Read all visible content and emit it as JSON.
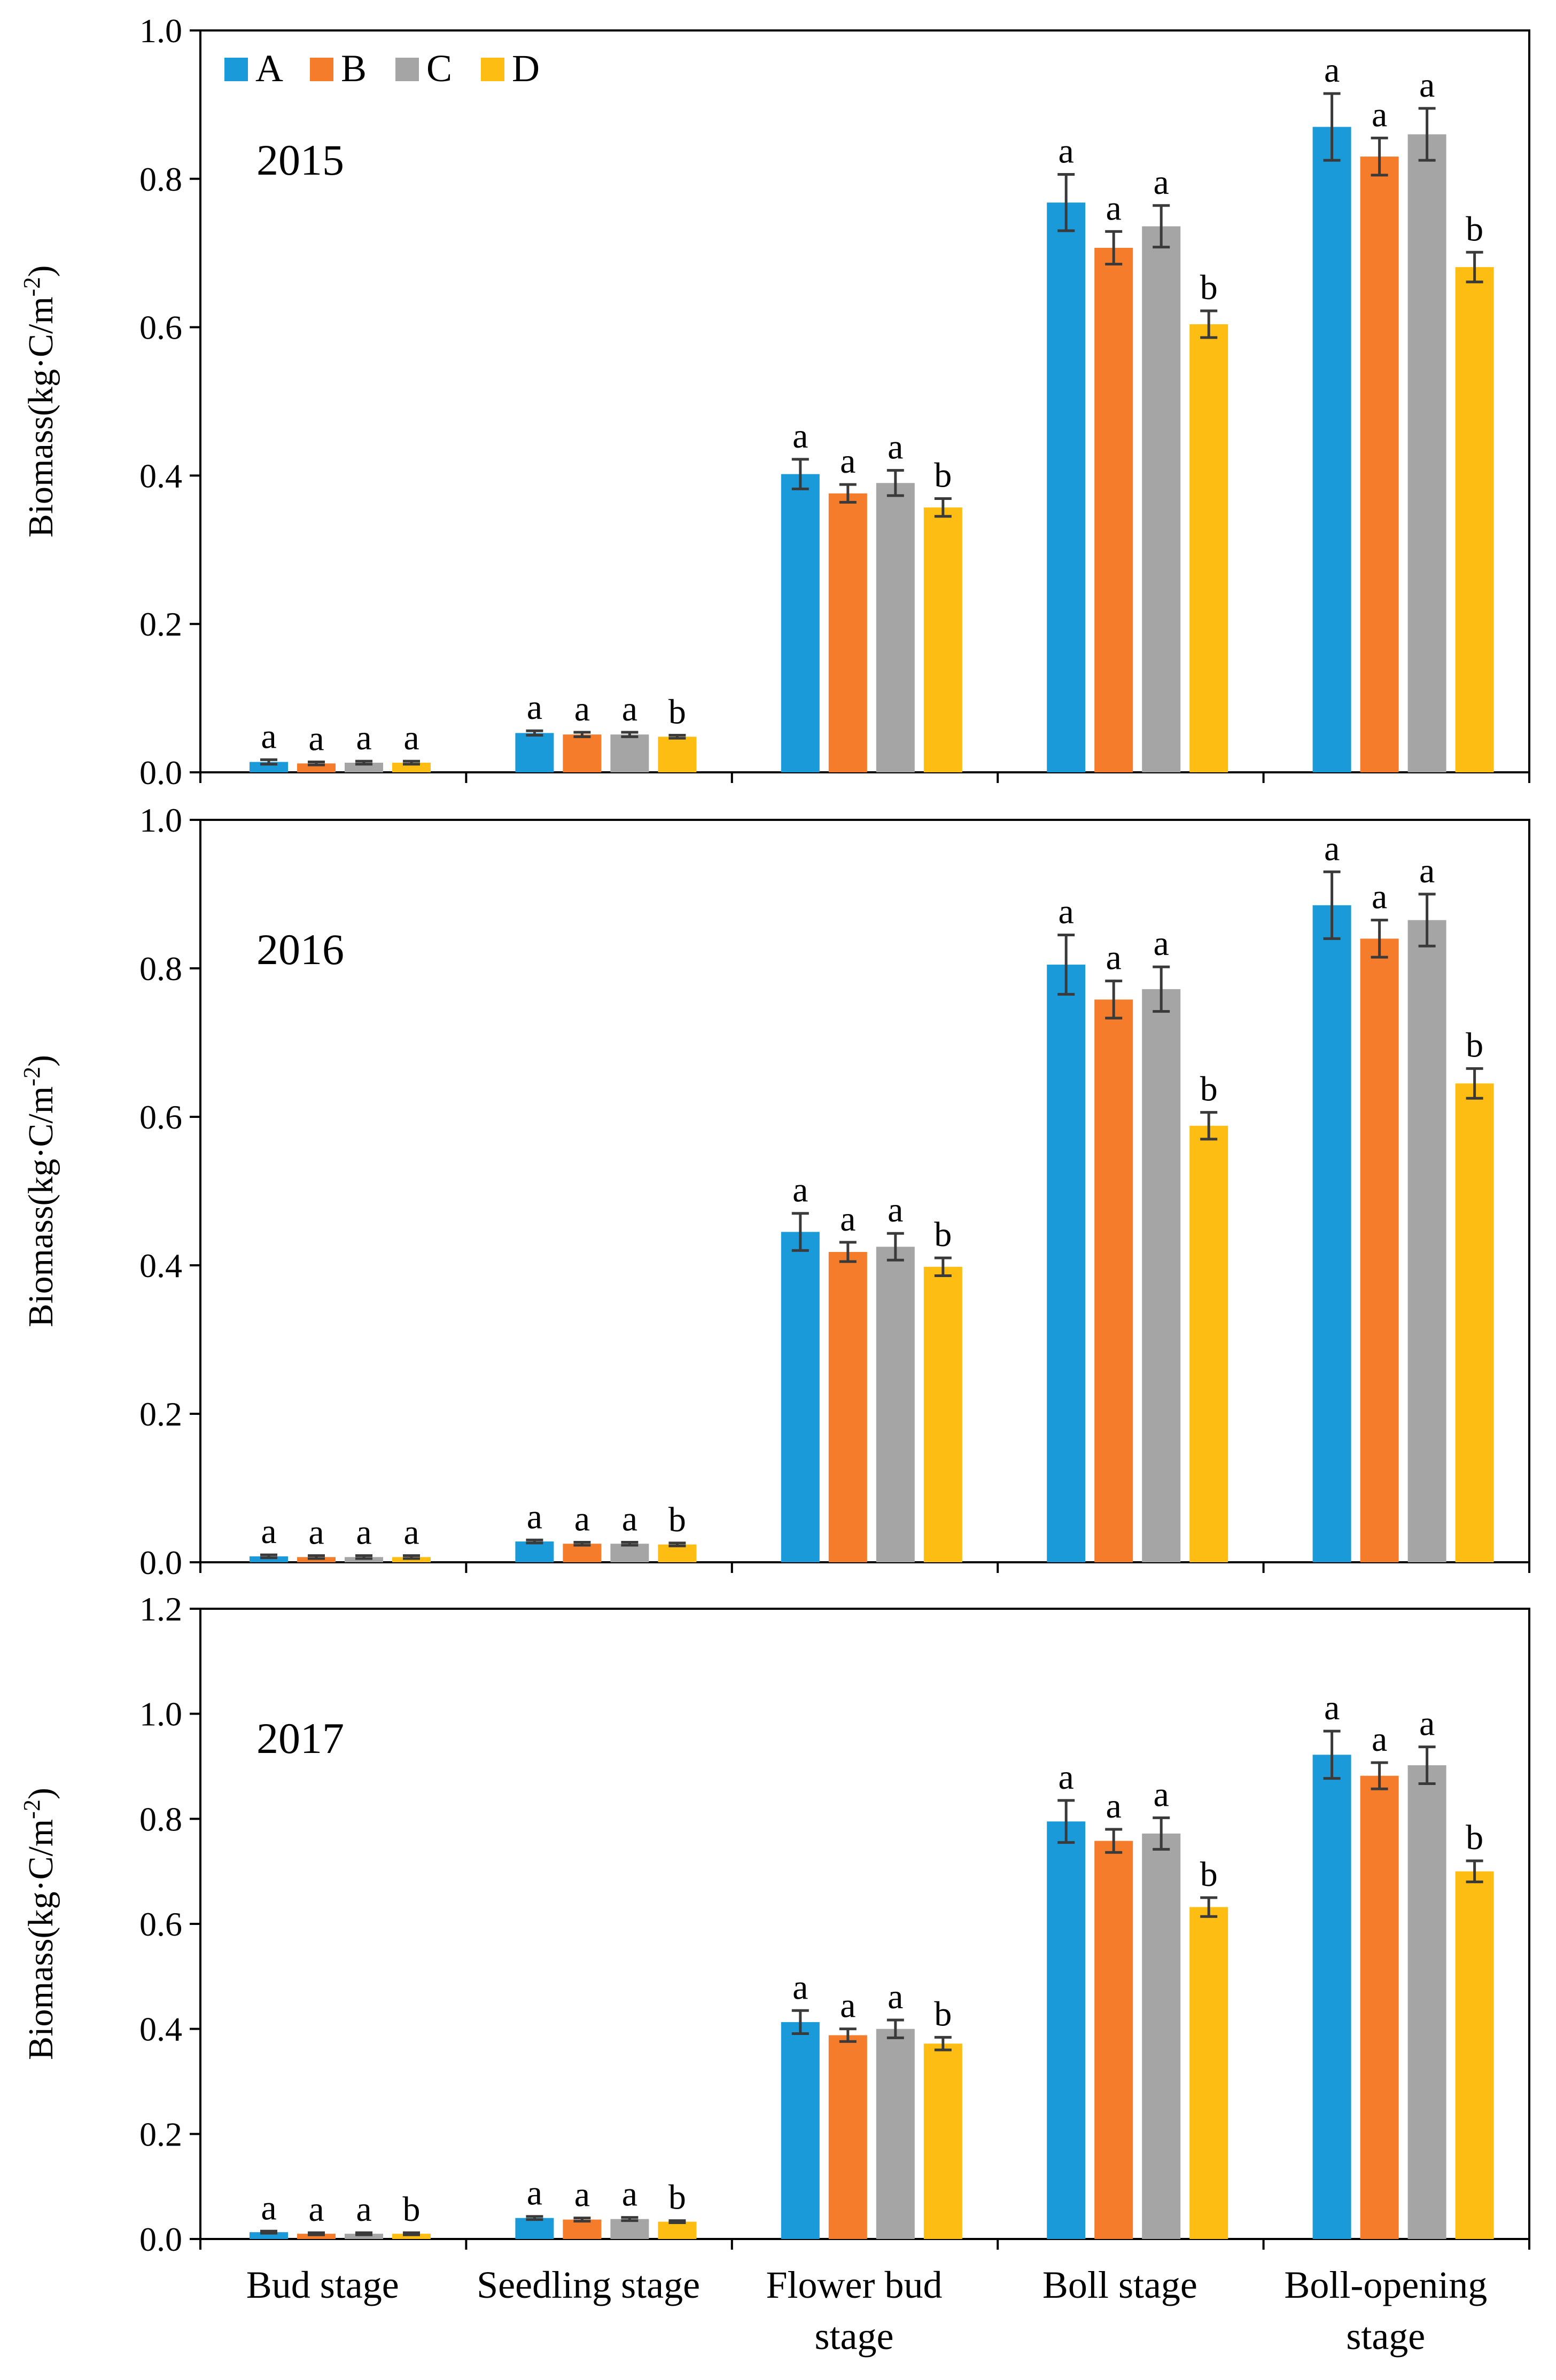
{
  "legend": {
    "items": [
      {
        "key": "A",
        "color": "#1a9ad8"
      },
      {
        "key": "B",
        "color": "#f47c2a"
      },
      {
        "key": "C",
        "color": "#a5a5a5"
      },
      {
        "key": "D",
        "color": "#fdbd13"
      }
    ]
  },
  "x_axis": {
    "labels": [
      [
        "Bud stage"
      ],
      [
        "Seedling stage"
      ],
      [
        "Flower bud",
        "stage"
      ],
      [
        "Boll stage"
      ],
      [
        "Boll-opening",
        "stage"
      ]
    ]
  },
  "chart_data": [
    {
      "type": "bar",
      "title": "2015",
      "xlabel": "",
      "ylabel": "Biomass(kg·C/m-2)",
      "ylim": [
        0,
        1.0
      ],
      "yticks": [
        "0.0",
        "0.2",
        "0.4",
        "0.6",
        "0.8",
        "1.0"
      ],
      "categories": [
        "Bud stage",
        "Seedling stage",
        "Flower bud stage",
        "Boll stage",
        "Boll-opening stage"
      ],
      "series": [
        {
          "name": "A",
          "color": "#1a9ad8",
          "values": [
            0.014,
            0.053,
            0.402,
            0.768,
            0.87
          ],
          "errors": [
            0.003,
            0.003,
            0.02,
            0.038,
            0.045
          ],
          "labels": [
            "a",
            "a",
            "a",
            "a",
            "a"
          ]
        },
        {
          "name": "B",
          "color": "#f47c2a",
          "values": [
            0.012,
            0.051,
            0.376,
            0.707,
            0.83
          ],
          "errors": [
            0.002,
            0.003,
            0.012,
            0.022,
            0.025
          ],
          "labels": [
            "a",
            "a",
            "a",
            "a",
            "a"
          ]
        },
        {
          "name": "C",
          "color": "#a5a5a5",
          "values": [
            0.013,
            0.051,
            0.39,
            0.736,
            0.86
          ],
          "errors": [
            0.002,
            0.003,
            0.017,
            0.028,
            0.035
          ],
          "labels": [
            "a",
            "a",
            "a",
            "a",
            "a"
          ]
        },
        {
          "name": "D",
          "color": "#fdbd13",
          "values": [
            0.013,
            0.048,
            0.357,
            0.604,
            0.681
          ],
          "errors": [
            0.002,
            0.002,
            0.012,
            0.018,
            0.02
          ],
          "labels": [
            "a",
            "b",
            "b",
            "b",
            "b"
          ]
        }
      ]
    },
    {
      "type": "bar",
      "title": "2016",
      "xlabel": "",
      "ylabel": "Biomass(kg·C/m-2)",
      "ylim": [
        0,
        1.0
      ],
      "yticks": [
        "0.0",
        "0.2",
        "0.4",
        "0.6",
        "0.8",
        "1.0"
      ],
      "categories": [
        "Bud stage",
        "Seedling stage",
        "Flower bud stage",
        "Boll stage",
        "Boll-opening stage"
      ],
      "series": [
        {
          "name": "A",
          "color": "#1a9ad8",
          "values": [
            0.008,
            0.028,
            0.445,
            0.805,
            0.885
          ],
          "errors": [
            0.002,
            0.002,
            0.025,
            0.04,
            0.045
          ],
          "labels": [
            "a",
            "a",
            "a",
            "a",
            "a"
          ]
        },
        {
          "name": "B",
          "color": "#f47c2a",
          "values": [
            0.007,
            0.025,
            0.418,
            0.758,
            0.84
          ],
          "errors": [
            0.002,
            0.002,
            0.013,
            0.025,
            0.025
          ],
          "labels": [
            "a",
            "a",
            "a",
            "a",
            "a"
          ]
        },
        {
          "name": "C",
          "color": "#a5a5a5",
          "values": [
            0.007,
            0.025,
            0.425,
            0.772,
            0.865
          ],
          "errors": [
            0.002,
            0.002,
            0.018,
            0.03,
            0.035
          ],
          "labels": [
            "a",
            "a",
            "a",
            "a",
            "a"
          ]
        },
        {
          "name": "D",
          "color": "#fdbd13",
          "values": [
            0.007,
            0.024,
            0.398,
            0.588,
            0.645
          ],
          "errors": [
            0.002,
            0.002,
            0.012,
            0.018,
            0.02
          ],
          "labels": [
            "a",
            "b",
            "b",
            "b",
            "b"
          ]
        }
      ]
    },
    {
      "type": "bar",
      "title": "2017",
      "xlabel": "",
      "ylabel": "Biomass(kg·C/m-2)",
      "ylim": [
        0,
        1.2
      ],
      "yticks": [
        "0.0",
        "0.2",
        "0.4",
        "0.6",
        "0.8",
        "1.0",
        "1.2"
      ],
      "categories": [
        "Bud stage",
        "Seedling stage",
        "Flower bud stage",
        "Boll stage",
        "Boll-opening stage"
      ],
      "series": [
        {
          "name": "A",
          "color": "#1a9ad8",
          "values": [
            0.013,
            0.04,
            0.413,
            0.795,
            0.922
          ],
          "errors": [
            0.002,
            0.003,
            0.022,
            0.04,
            0.045
          ],
          "labels": [
            "a",
            "a",
            "a",
            "a",
            "a"
          ]
        },
        {
          "name": "B",
          "color": "#f47c2a",
          "values": [
            0.01,
            0.037,
            0.388,
            0.758,
            0.882
          ],
          "errors": [
            0.002,
            0.003,
            0.012,
            0.022,
            0.025
          ],
          "labels": [
            "a",
            "a",
            "a",
            "a",
            "a"
          ]
        },
        {
          "name": "C",
          "color": "#a5a5a5",
          "values": [
            0.01,
            0.038,
            0.4,
            0.772,
            0.902
          ],
          "errors": [
            0.002,
            0.003,
            0.017,
            0.03,
            0.035
          ],
          "labels": [
            "a",
            "a",
            "a",
            "a",
            "a"
          ]
        },
        {
          "name": "D",
          "color": "#fdbd13",
          "values": [
            0.01,
            0.033,
            0.372,
            0.632,
            0.7
          ],
          "errors": [
            0.002,
            0.002,
            0.012,
            0.018,
            0.02
          ],
          "labels": [
            "b",
            "b",
            "b",
            "b",
            "b"
          ]
        }
      ]
    }
  ]
}
